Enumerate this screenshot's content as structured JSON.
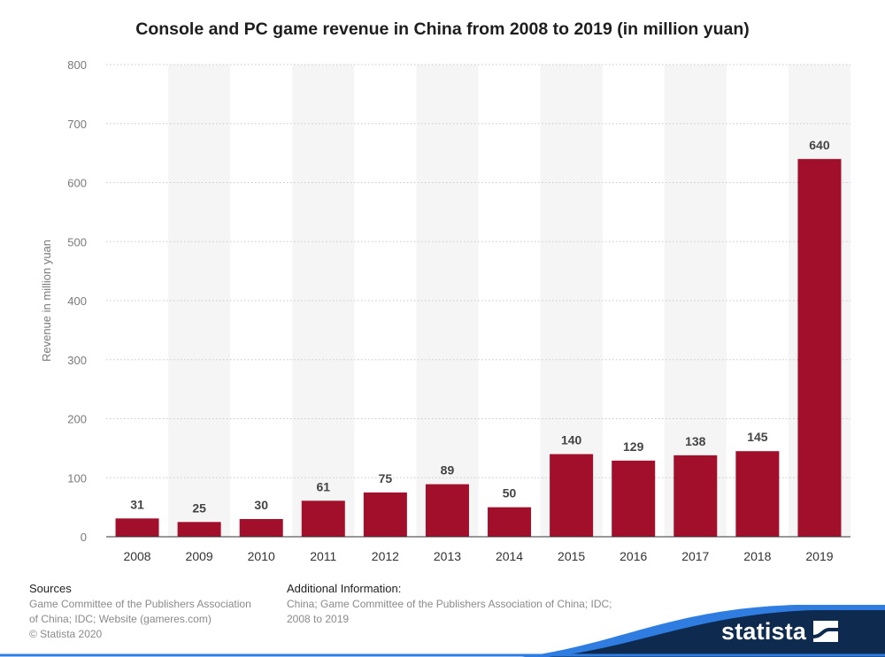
{
  "title": "Console and PC game revenue in China from 2008 to 2019 (in million yuan)",
  "chart_data": {
    "type": "bar",
    "title": "Console and PC game revenue in China from 2008 to 2019 (in million yuan)",
    "xlabel": "",
    "ylabel": "Revenue in million yuan",
    "categories": [
      "2008",
      "2009",
      "2010",
      "2011",
      "2012",
      "2013",
      "2014",
      "2015",
      "2016",
      "2017",
      "2018",
      "2019"
    ],
    "values": [
      31,
      25,
      30,
      61,
      75,
      89,
      50,
      140,
      129,
      138,
      145,
      640
    ],
    "ylim": [
      0,
      800
    ],
    "yticks": [
      0,
      100,
      200,
      300,
      400,
      500,
      600,
      700,
      800
    ],
    "grid": true,
    "bar_color": "#a20f2b",
    "data_labels": true
  },
  "footer": {
    "sources_heading": "Sources",
    "sources_lines": [
      "Game Committee of the Publishers Association",
      "of China; IDC; Website (gameres.com)",
      "© Statista 2020"
    ],
    "additional_heading": "Additional Information:",
    "additional_lines": [
      "China; Game Committee of the Publishers Association of China; IDC;",
      "2008 to 2019"
    ]
  },
  "brand": {
    "logo_text": "statista",
    "logo_icon": "statista-logo-icon",
    "colors": {
      "navy": "#0e2a4f",
      "blue": "#2f7de1"
    }
  }
}
